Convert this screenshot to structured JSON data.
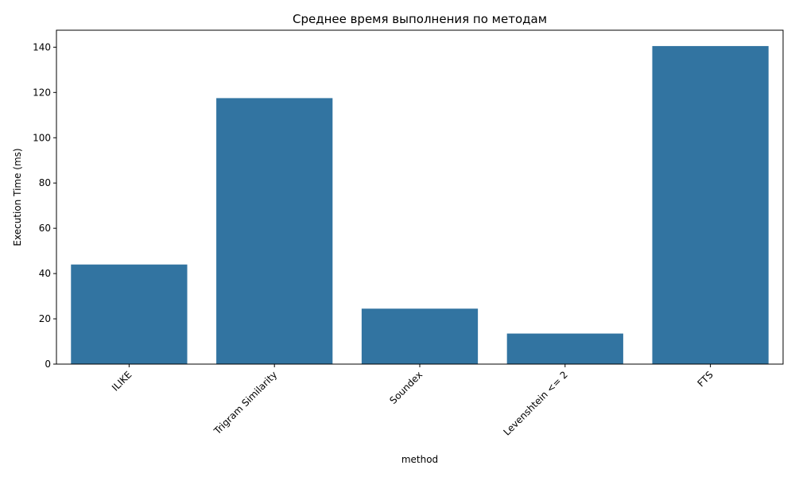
{
  "chart_data": {
    "type": "bar",
    "title": "Среднее время выполнения по методам",
    "xlabel": "method",
    "ylabel": "Execution Time (ms)",
    "categories": [
      "ILIKE",
      "Trigram Similarity",
      "Soundex",
      "Levenshtein <= 2",
      "FTS"
    ],
    "values": [
      44.0,
      117.5,
      24.5,
      13.5,
      140.5
    ],
    "ylim": [
      0,
      147.5
    ],
    "yticks": [
      0,
      20,
      40,
      60,
      80,
      100,
      120,
      140
    ],
    "grid": false,
    "legend": "none",
    "bar_color": "#3274a1",
    "x_tick_rotation_deg": 45
  }
}
